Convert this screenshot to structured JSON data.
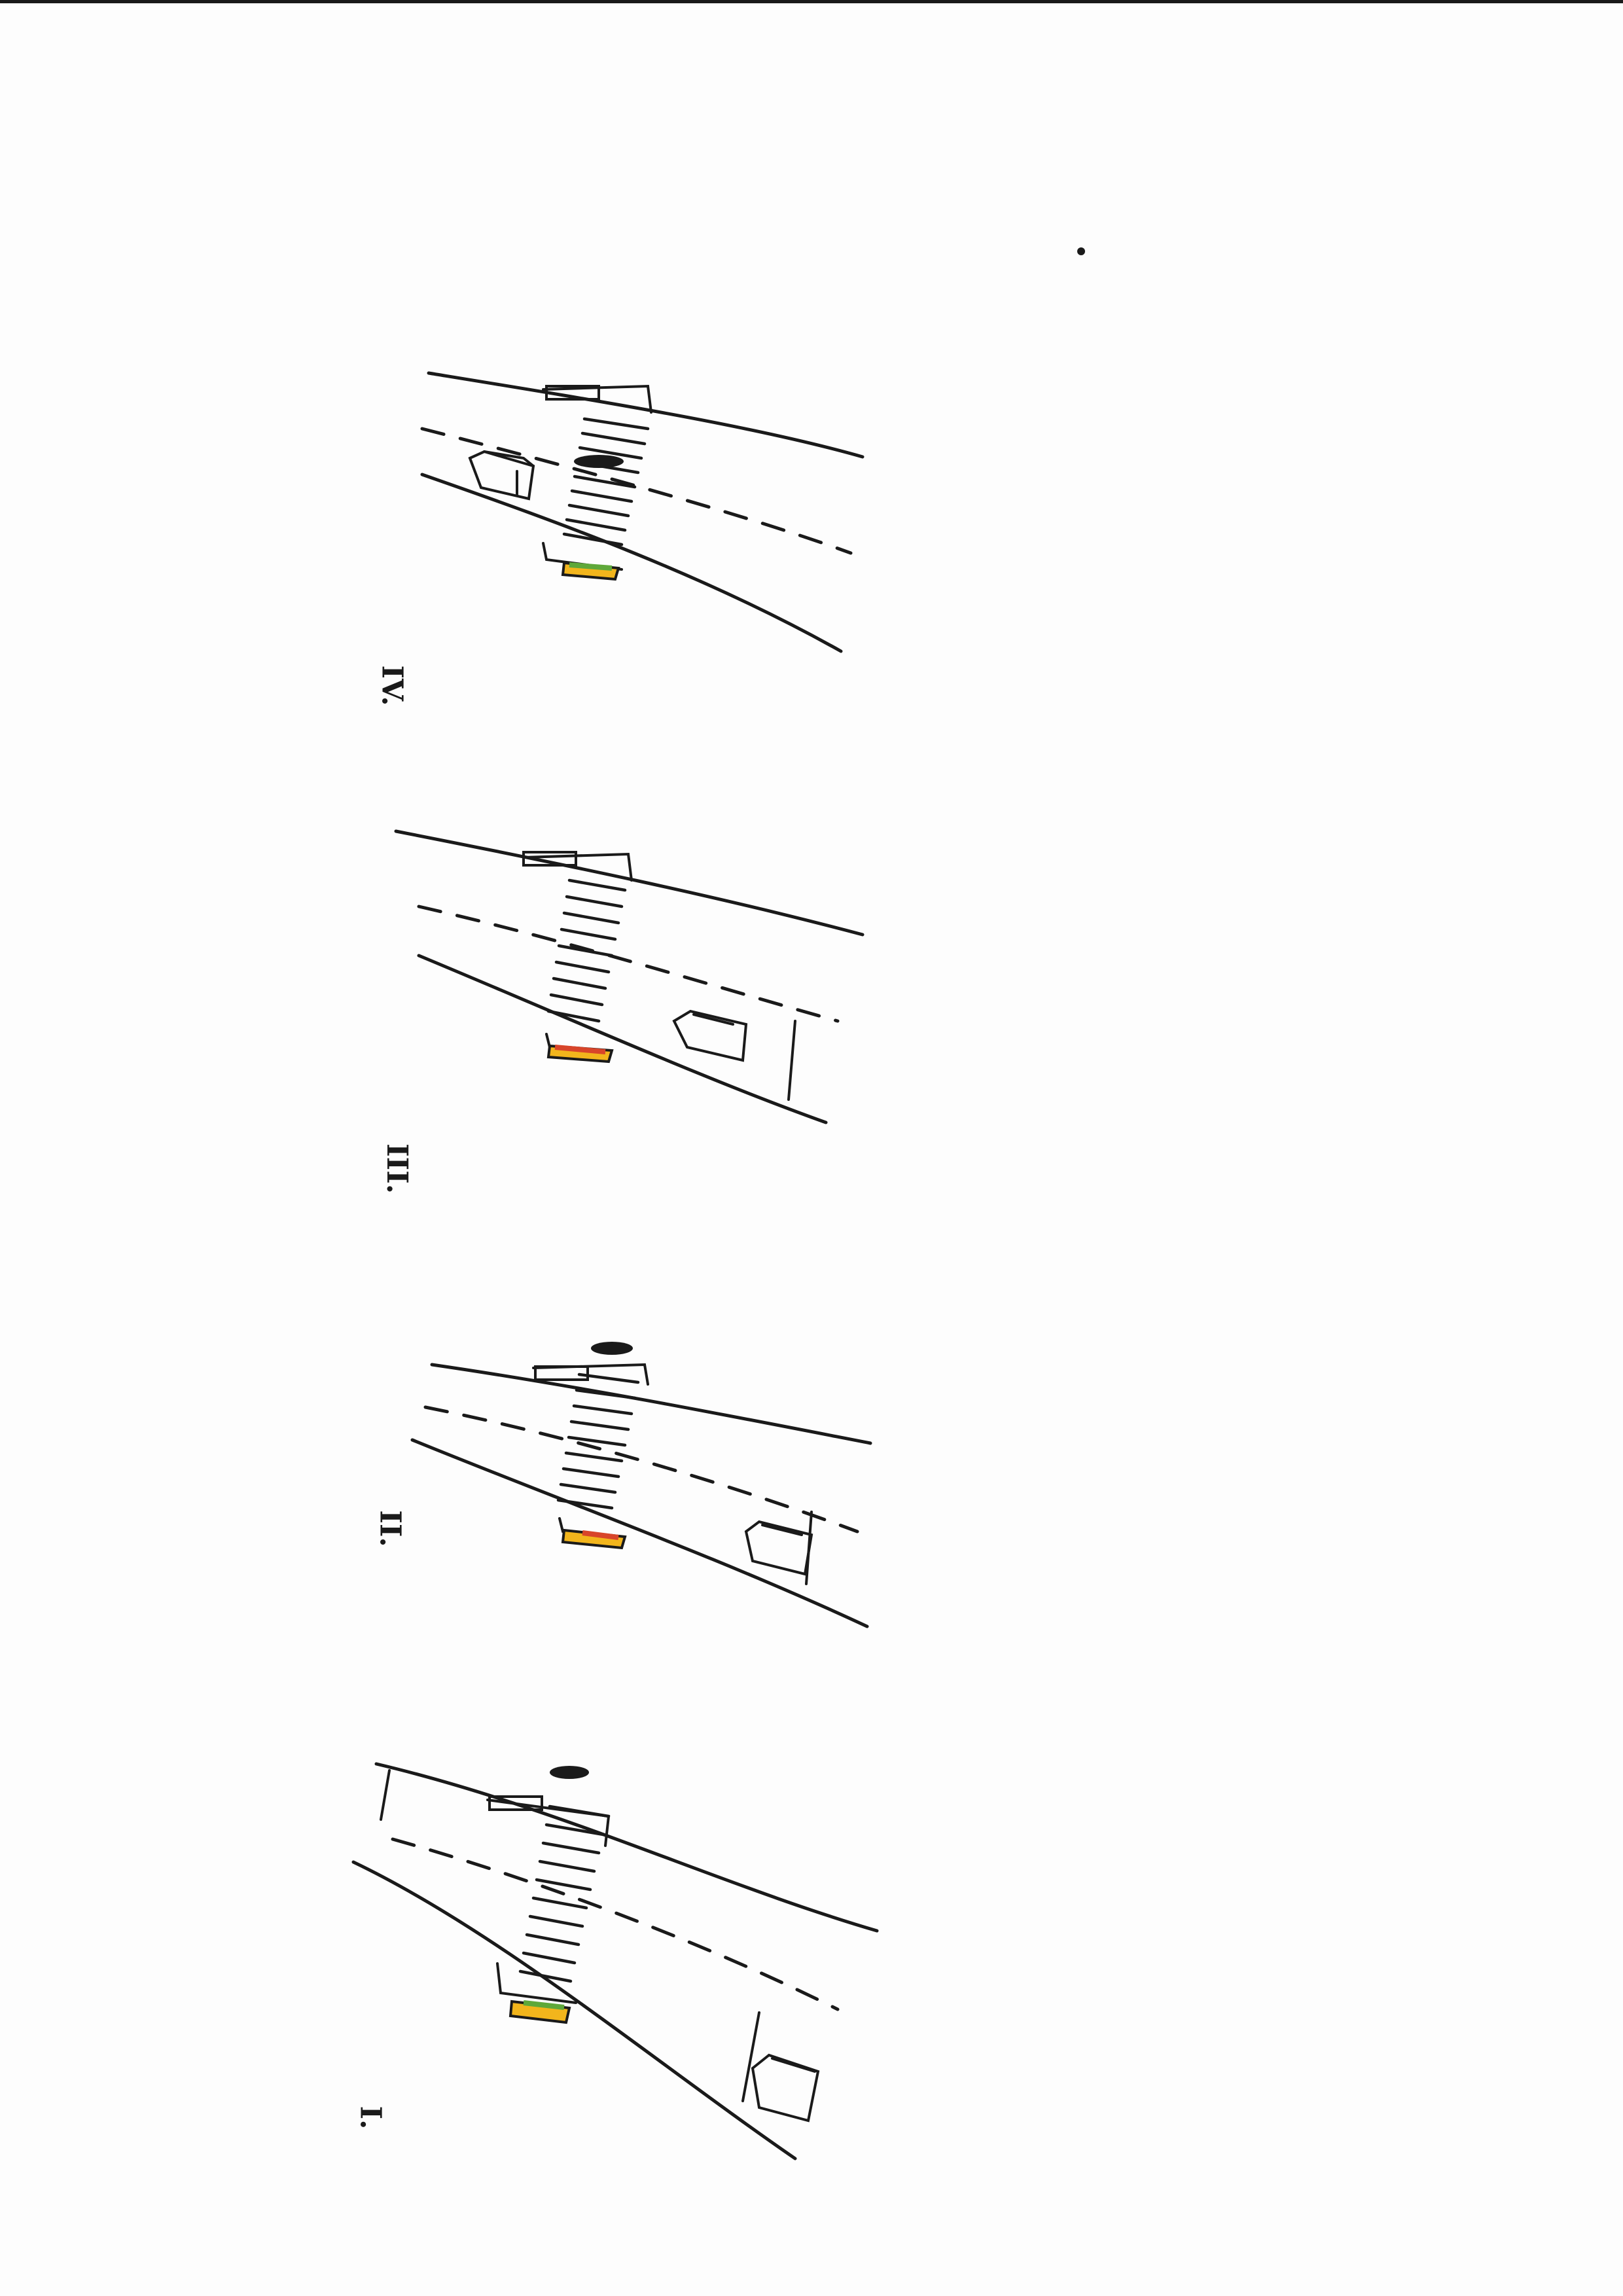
{
  "sheet": {
    "description_colors": {
      "ink": "#1a1a1a",
      "signal_green": "#5fa83a",
      "signal_amber": "#f2b51c",
      "signal_red": "#d8452a",
      "paper": "#fdfdfd"
    }
  },
  "frames": [
    {
      "label": "IV.",
      "signal_state": "green-amber"
    },
    {
      "label": "III.",
      "signal_state": "red-amber"
    },
    {
      "label": "II.",
      "signal_state": "amber-red"
    },
    {
      "label": "I.",
      "signal_state": "green-amber"
    }
  ]
}
